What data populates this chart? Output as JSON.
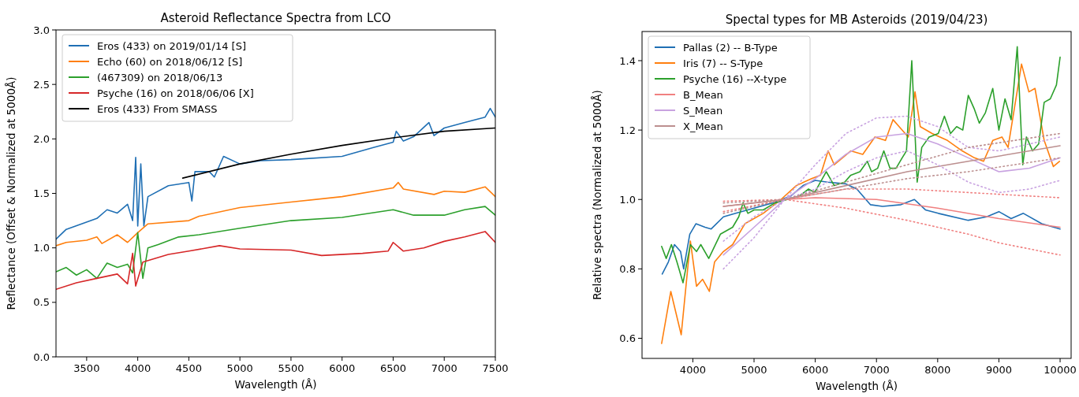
{
  "chart_data": [
    {
      "type": "line",
      "title": "Asteroid Reflectance Spectra from LCO",
      "xlabel": "Wavelength (Å)",
      "ylabel": "Reflectance (Offset & Normalized at 5000Å)",
      "xlim": [
        3200,
        7500
      ],
      "ylim": [
        0,
        3
      ],
      "xticks": [
        3500,
        4000,
        4500,
        5000,
        5500,
        6000,
        6500,
        7000,
        7500
      ],
      "yticks": [
        {
          "value": 0,
          "label": "0.0"
        },
        0.5,
        {
          "value": 1,
          "label": "1.0"
        },
        1.5,
        {
          "value": 2,
          "label": "2.0"
        },
        2.5,
        {
          "value": 3,
          "label": "3.0"
        }
      ],
      "legend": "top left",
      "grid": false,
      "series": [
        {
          "name": "Eros (433) on 2019/01/14 [S]",
          "color": "#1f6fb4",
          "x": [
            3200,
            3300,
            3450,
            3600,
            3700,
            3800,
            3900,
            3950,
            3980,
            4000,
            4030,
            4060,
            4100,
            4300,
            4500,
            4530,
            4560,
            4700,
            4750,
            4840,
            5000,
            5200,
            5500,
            6000,
            6300,
            6500,
            6530,
            6600,
            6700,
            6850,
            6900,
            7000,
            7200,
            7400,
            7450,
            7500
          ],
          "values": [
            1.08,
            1.17,
            1.22,
            1.27,
            1.35,
            1.32,
            1.4,
            1.25,
            1.83,
            1.2,
            1.77,
            1.2,
            1.47,
            1.57,
            1.6,
            1.43,
            1.7,
            1.7,
            1.65,
            1.84,
            1.77,
            1.8,
            1.81,
            1.84,
            1.92,
            1.97,
            2.07,
            1.98,
            2.02,
            2.15,
            2.03,
            2.1,
            2.15,
            2.2,
            2.28,
            2.2
          ]
        },
        {
          "name": "Echo (60) on 2018/06/12 [S]",
          "color": "#ff7f0e",
          "x": [
            3200,
            3300,
            3500,
            3600,
            3650,
            3800,
            3900,
            4000,
            4100,
            4500,
            4600,
            5000,
            5500,
            6000,
            6500,
            6550,
            6600,
            6900,
            7000,
            7200,
            7400,
            7500
          ],
          "values": [
            1.02,
            1.05,
            1.07,
            1.1,
            1.04,
            1.12,
            1.05,
            1.14,
            1.22,
            1.25,
            1.29,
            1.37,
            1.42,
            1.47,
            1.55,
            1.6,
            1.54,
            1.49,
            1.52,
            1.51,
            1.56,
            1.47
          ]
        },
        {
          "name": "(467309) on 2018/06/13",
          "color": "#2ca02c",
          "x": [
            3200,
            3300,
            3400,
            3500,
            3600,
            3700,
            3800,
            3900,
            3950,
            4000,
            4050,
            4100,
            4200,
            4400,
            4600,
            5000,
            5500,
            6000,
            6500,
            6700,
            7000,
            7200,
            7400,
            7500
          ],
          "values": [
            0.78,
            0.82,
            0.75,
            0.8,
            0.72,
            0.86,
            0.82,
            0.85,
            0.77,
            1.14,
            0.72,
            1.0,
            1.03,
            1.1,
            1.12,
            1.18,
            1.25,
            1.28,
            1.35,
            1.3,
            1.3,
            1.35,
            1.38,
            1.3
          ]
        },
        {
          "name": "Psyche (16) on 2018/06/06 [X]",
          "color": "#d62728",
          "x": [
            3200,
            3400,
            3600,
            3800,
            3900,
            3950,
            3980,
            4050,
            4300,
            4500,
            4800,
            5000,
            5500,
            5800,
            6200,
            6450,
            6500,
            6600,
            6800,
            7000,
            7200,
            7400,
            7500
          ],
          "values": [
            0.62,
            0.68,
            0.72,
            0.76,
            0.67,
            0.95,
            0.65,
            0.87,
            0.94,
            0.97,
            1.02,
            0.99,
            0.98,
            0.93,
            0.95,
            0.97,
            1.05,
            0.97,
            1.0,
            1.06,
            1.1,
            1.15,
            1.05
          ]
        },
        {
          "name": "Eros (433) From SMASS",
          "color": "#000000",
          "x": [
            4440,
            5000,
            5500,
            6000,
            6500,
            7000,
            7500
          ],
          "values": [
            1.64,
            1.77,
            1.86,
            1.94,
            2.01,
            2.07,
            2.1
          ]
        }
      ]
    },
    {
      "type": "line",
      "title": "Spectal types for MB Asteroids (2019/04/23)",
      "xlabel": "Wavelength (Å)",
      "ylabel": "Relative spectra (Normalized at 5000Å)",
      "xlim": [
        3170,
        10180
      ],
      "ylim": [
        0.542,
        1.484
      ],
      "xticks": [
        4000,
        5000,
        6000,
        7000,
        8000,
        9000,
        10000
      ],
      "yticks": [
        0.6,
        0.8,
        {
          "value": 1,
          "label": "1.0"
        },
        1.2,
        1.4
      ],
      "legend": "top left",
      "grid": false,
      "series": [
        {
          "name": "Pallas (2) -- B-Type",
          "color": "#1f6fb4",
          "x": [
            3500,
            3600,
            3700,
            3800,
            3850,
            3950,
            4050,
            4200,
            4300,
            4500,
            4700,
            5000,
            5300,
            5600,
            5800,
            6000,
            6200,
            6500,
            6680,
            6900,
            7100,
            7400,
            7620,
            7800,
            8010,
            8500,
            8800,
            9000,
            9200,
            9400,
            9700,
            10000
          ],
          "values": [
            0.785,
            0.82,
            0.87,
            0.85,
            0.8,
            0.9,
            0.93,
            0.92,
            0.915,
            0.95,
            0.96,
            0.975,
            0.99,
            1.01,
            1.04,
            1.055,
            1.05,
            1.045,
            1.03,
            0.985,
            0.98,
            0.985,
            1.0,
            0.97,
            0.96,
            0.94,
            0.95,
            0.965,
            0.945,
            0.96,
            0.93,
            0.915
          ]
        },
        {
          "name": "Iris (7) -- S-Type",
          "color": "#ff7f0e",
          "x": [
            3490,
            3640,
            3810,
            3960,
            4060,
            4160,
            4270,
            4355,
            4500,
            4650,
            4850,
            5150,
            5440,
            5690,
            5940,
            6085,
            6210,
            6310,
            6580,
            6776,
            6974,
            7147,
            7270,
            7370,
            7520,
            7630,
            7715,
            7910,
            8160,
            8400,
            8600,
            8750,
            8900,
            9050,
            9150,
            9370,
            9490,
            9590,
            9740,
            9890,
            9990
          ],
          "values": [
            0.585,
            0.735,
            0.61,
            0.88,
            0.75,
            0.77,
            0.735,
            0.82,
            0.85,
            0.87,
            0.93,
            0.96,
            1.0,
            1.04,
            1.06,
            1.07,
            1.14,
            1.1,
            1.14,
            1.13,
            1.18,
            1.17,
            1.23,
            1.21,
            1.18,
            1.31,
            1.21,
            1.19,
            1.17,
            1.14,
            1.12,
            1.11,
            1.17,
            1.18,
            1.15,
            1.39,
            1.31,
            1.32,
            1.17,
            1.095,
            1.11
          ]
        },
        {
          "name": "Psyche (16) --X-type",
          "color": "#2ca02c",
          "x": [
            3490,
            3565,
            3650,
            3740,
            3840,
            3960,
            4060,
            4130,
            4260,
            4450,
            4650,
            4750,
            4820,
            4900,
            5000,
            5150,
            5340,
            5540,
            5740,
            5890,
            5990,
            6180,
            6310,
            6480,
            6580,
            6730,
            6850,
            6920,
            7020,
            7120,
            7220,
            7320,
            7420,
            7490,
            7577,
            7665,
            7740,
            7860,
            8010,
            8110,
            8210,
            8310,
            8410,
            8500,
            8600,
            8680,
            8780,
            8900,
            9000,
            9100,
            9200,
            9300,
            9390,
            9450,
            9550,
            9650,
            9740,
            9840,
            9940,
            10000
          ],
          "values": [
            0.865,
            0.83,
            0.87,
            0.82,
            0.76,
            0.87,
            0.85,
            0.87,
            0.83,
            0.9,
            0.92,
            0.95,
            0.99,
            0.96,
            0.97,
            0.97,
            0.99,
            1.0,
            1.01,
            1.03,
            1.02,
            1.08,
            1.04,
            1.05,
            1.07,
            1.08,
            1.11,
            1.08,
            1.09,
            1.14,
            1.09,
            1.09,
            1.12,
            1.14,
            1.4,
            1.05,
            1.15,
            1.18,
            1.19,
            1.24,
            1.19,
            1.21,
            1.2,
            1.3,
            1.26,
            1.22,
            1.25,
            1.32,
            1.2,
            1.29,
            1.23,
            1.44,
            1.1,
            1.18,
            1.14,
            1.16,
            1.28,
            1.29,
            1.33,
            1.41
          ]
        },
        {
          "name": "B_Mean",
          "color": "#f08080",
          "x": [
            4500,
            5500,
            6000,
            7000,
            8000,
            9000,
            10000
          ],
          "values": [
            0.98,
            1.0,
            1.005,
            1.0,
            0.975,
            0.945,
            0.92
          ]
        },
        {
          "name": "S_Mean",
          "color": "#c8a2e0",
          "x": [
            4500,
            5000,
            5500,
            6000,
            6500,
            7000,
            7500,
            8000,
            8500,
            9000,
            9500,
            10000
          ],
          "values": [
            0.84,
            0.92,
            1.0,
            1.06,
            1.13,
            1.18,
            1.19,
            1.16,
            1.12,
            1.08,
            1.09,
            1.12
          ]
        },
        {
          "name": "X_Mean",
          "color": "#bc8f8f",
          "x": [
            4500,
            5500,
            6500,
            7500,
            8500,
            10000
          ],
          "values": [
            0.98,
            1.0,
            1.04,
            1.08,
            1.11,
            1.155
          ]
        },
        {
          "color": "#f08080",
          "line_style": "dotted",
          "x": [
            4500,
            5500,
            6500,
            7500,
            8500,
            10000
          ],
          "values": [
            0.995,
            1.0,
            1.03,
            1.03,
            1.02,
            1.005
          ]
        },
        {
          "color": "#f08080",
          "line_style": "dotted",
          "x": [
            4500,
            5500,
            6500,
            7500,
            8500,
            9000,
            10000
          ],
          "values": [
            0.965,
            1.0,
            0.975,
            0.94,
            0.9,
            0.875,
            0.84
          ]
        },
        {
          "color": "#c8a2e0",
          "line_style": "dotted",
          "x": [
            4500,
            5000,
            5500,
            6000,
            6500,
            7000,
            7500,
            8000,
            8500,
            9000,
            9500,
            10000
          ],
          "values": [
            0.88,
            0.95,
            1.0,
            1.1,
            1.19,
            1.235,
            1.24,
            1.21,
            1.15,
            1.14,
            1.16,
            1.18
          ]
        },
        {
          "color": "#c8a2e0",
          "line_style": "dotted",
          "x": [
            4500,
            5000,
            5500,
            6000,
            6500,
            7000,
            7500,
            8000,
            8500,
            9000,
            9500,
            10000
          ],
          "values": [
            0.8,
            0.89,
            1.0,
            1.03,
            1.08,
            1.12,
            1.14,
            1.1,
            1.05,
            1.02,
            1.03,
            1.055
          ]
        },
        {
          "color": "#bc8f8f",
          "line_style": "dotted",
          "x": [
            4500,
            5500,
            6500,
            7500,
            8500,
            10000
          ],
          "values": [
            0.99,
            1.0,
            1.05,
            1.1,
            1.15,
            1.19
          ]
        },
        {
          "color": "#bc8f8f",
          "line_style": "dotted",
          "x": [
            4500,
            5500,
            6500,
            7500,
            8500,
            10000
          ],
          "values": [
            0.96,
            1.0,
            1.03,
            1.06,
            1.08,
            1.12
          ]
        }
      ]
    }
  ]
}
